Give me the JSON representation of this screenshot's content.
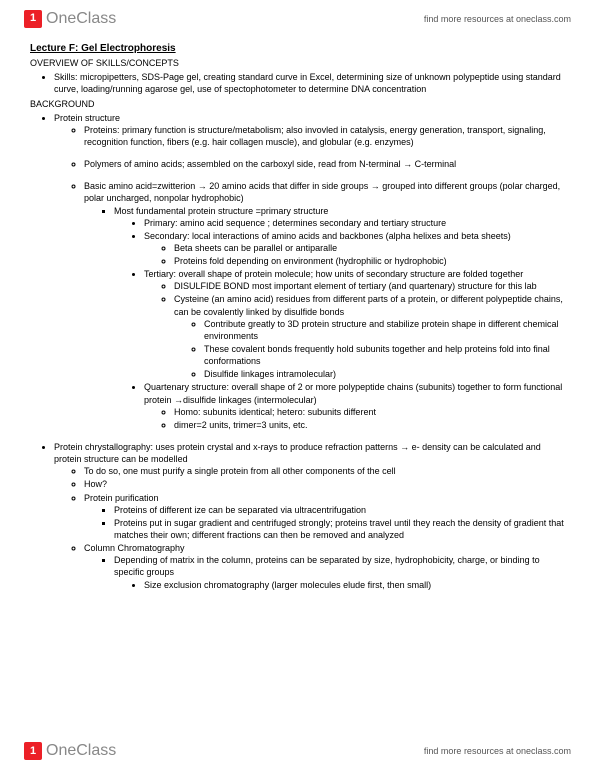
{
  "brand": {
    "name": "OneClass",
    "icon_glyph": "1"
  },
  "header_link": "find more resources at oneclass.com",
  "footer_link": "find more resources at oneclass.com",
  "doc": {
    "title": "Lecture F: Gel Electrophoresis",
    "overview_heading": "OVERVIEW OF SKILLS/CONCEPTS",
    "skills": "Skills: micropipetters, SDS-Page gel, creating standard curve in Excel, determining size of unknown polypeptide using standard curve, loading/running agarose gel, use of spectophotometer to determine DNA concentration",
    "background_heading": "BACKGROUND",
    "protein_structure": "Protein structure",
    "proteins_primary": "Proteins: primary function is structure/metabolism; also invovled in catalysis, energy generation, transport, signaling, recognition function, fibers (e.g. hair collagen muscle), and globular (e.g. enzymes)",
    "polymers": "Polymers of amino acids; assembled on the carboxyl side, read from N-terminal → C-terminal",
    "basic_amino": "Basic amino acid=zwitterion → 20 amino acids that differ in side groups → grouped into different groups (polar charged, polar uncharged, nonpolar hydrophobic)",
    "most_fundamental": "Most fundamental protein structure =primary structure",
    "primary": "Primary: amino acid sequence ; determines secondary and tertiary structure",
    "secondary": "Secondary: local interactions of amino acids and backbones (alpha helixes and beta sheets)",
    "beta_sheets": "Beta sheets can be parallel or antiparalle",
    "proteins_fold": "Proteins fold depending on environment (hydrophilic or hydrophobic)",
    "tertiary": "Tertiary: overall shape of protein molecule; how units of secondary structure are folded together",
    "disulfide": "DISULFIDE BOND most important element of tertiary (and quartenary) structure for this lab",
    "cysteine": "Cysteine (an amino acid) residues from different parts of a protein, or different polypeptide chains, can be covalently linked by disulfide bonds",
    "contribute": "Contribute greatly to 3D protein structure and stabilize protein shape in different chemical environments",
    "covalent": "These covalent bonds frequently hold subunits together and help proteins fold into final conformations",
    "linkages": "Disulfide linkages intramolecular)",
    "quartenary": "Quartenary structure: overall shape of 2 or more polypeptide chains (subunits) together to form  functional protein →disulfide linkages (intermolecular)",
    "homo": "Homo: subunits identical; hetero: subunits different",
    "dimer": "dimer=2 units, trimer=3 units, etc.",
    "crystallography": "Protein chrystallography: uses protein crystal and x-rays to produce refraction patterns → e- density can be calculated and protein structure can be modelled",
    "todo": "To do so, one must purify a single protein from all other components of the cell",
    "how": "How?",
    "purification": "Protein purification",
    "diff_size": "Proteins of different ize can be separated via ultracentrifugation",
    "sugar": "Proteins put in sugar gradient and centrifuged strongly; proteins travel until they reach the density of gradient that matches their own; different fractions can then be removed and analyzed",
    "column": "Column Chromatography",
    "depending": "Depending of matrix in the column, proteins can be separated by size, hydrophobicity, charge, or binding to specific groups",
    "size_exclusion": "Size exclusion chromatography (larger molecules elude first, then small)"
  }
}
